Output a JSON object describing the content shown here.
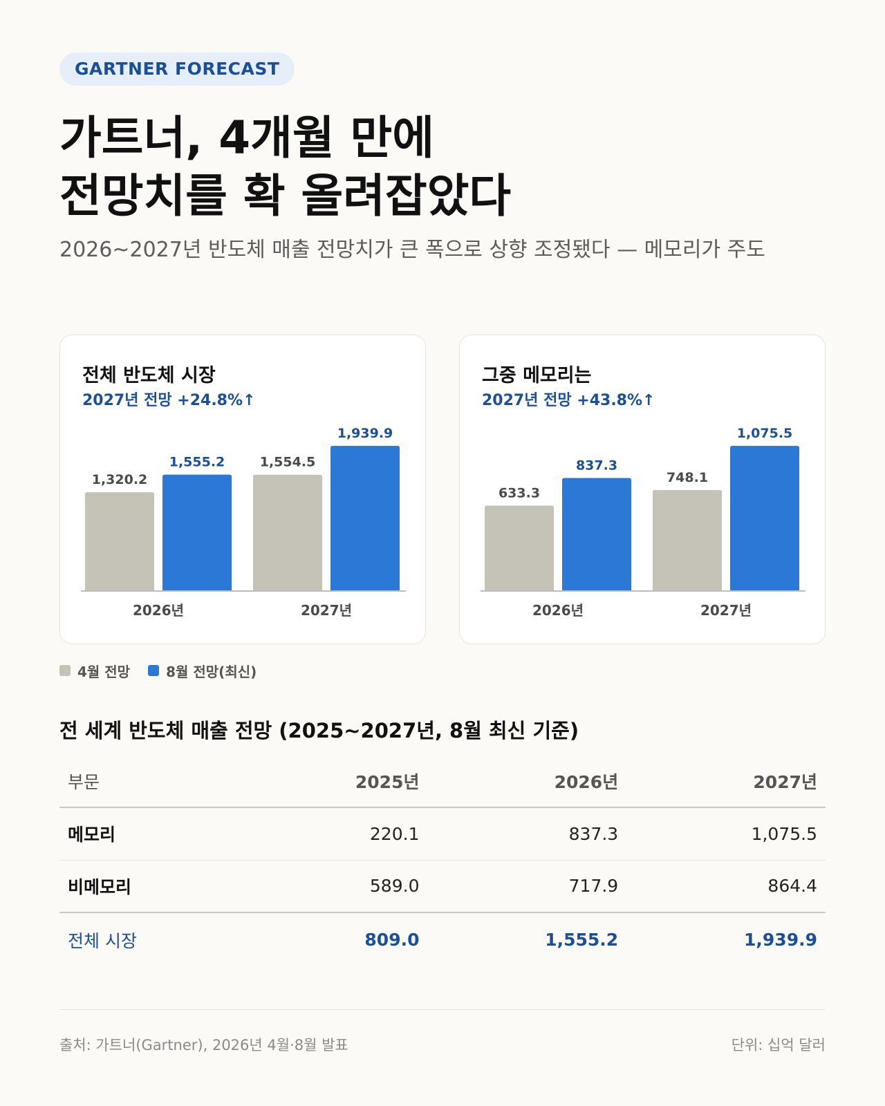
{
  "badge": "GARTNER FORECAST",
  "headline": {
    "line1": "가트너, 4개월 만에",
    "line2": "전망치를 확 올려잡았다"
  },
  "subtitle": "2026~2027년 반도체 매출 전망치가 큰 폭으로 상향 조정됐다 — 메모리가 주도",
  "colors": {
    "april": "#c5c2b7",
    "august": "#2b78d6",
    "accent": "#1a4f9c"
  },
  "chart_data": [
    {
      "type": "bar",
      "title": "전체 반도체 시장",
      "subtitle": "2027년 전망 +24.8%↑",
      "categories": [
        "2026년",
        "2027년"
      ],
      "series": [
        {
          "name": "4월 전망",
          "values": [
            1320.2,
            1554.5
          ],
          "labels": [
            "1,320.2",
            "1,554.5"
          ]
        },
        {
          "name": "8월 전망(최신)",
          "values": [
            1555.2,
            1939.9
          ],
          "labels": [
            "1,555.2",
            "1,939.9"
          ]
        }
      ],
      "ylim": [
        0,
        1939.9
      ],
      "grid": false,
      "legend": "bottom-left"
    },
    {
      "type": "bar",
      "title": "그중 메모리는",
      "subtitle": "2027년 전망 +43.8%↑",
      "categories": [
        "2026년",
        "2027년"
      ],
      "series": [
        {
          "name": "4월 전망",
          "values": [
            633.3,
            748.1
          ],
          "labels": [
            "633.3",
            "748.1"
          ]
        },
        {
          "name": "8월 전망(최신)",
          "values": [
            837.3,
            1075.5
          ],
          "labels": [
            "837.3",
            "1,075.5"
          ]
        }
      ],
      "ylim": [
        0,
        1075.5
      ],
      "grid": false,
      "legend": "bottom-left"
    }
  ],
  "legend": {
    "april": "4월 전망",
    "august": "8월 전망(최신)"
  },
  "table": {
    "title": "전 세계 반도체 매출 전망 (2025~2027년, 8월 최신 기준)",
    "headers": [
      "부문",
      "2025년",
      "2026년",
      "2027년"
    ],
    "rows": [
      [
        "메모리",
        "220.1",
        "837.3",
        "1,075.5"
      ],
      [
        "비메모리",
        "589.0",
        "717.9",
        "864.4"
      ]
    ],
    "total": [
      "전체 시장",
      "809.0",
      "1,555.2",
      "1,939.9"
    ]
  },
  "footer": {
    "source": "출처: 가트너(Gartner), 2026년 4월·8월 발표",
    "unit": "단위: 십억 달러"
  }
}
